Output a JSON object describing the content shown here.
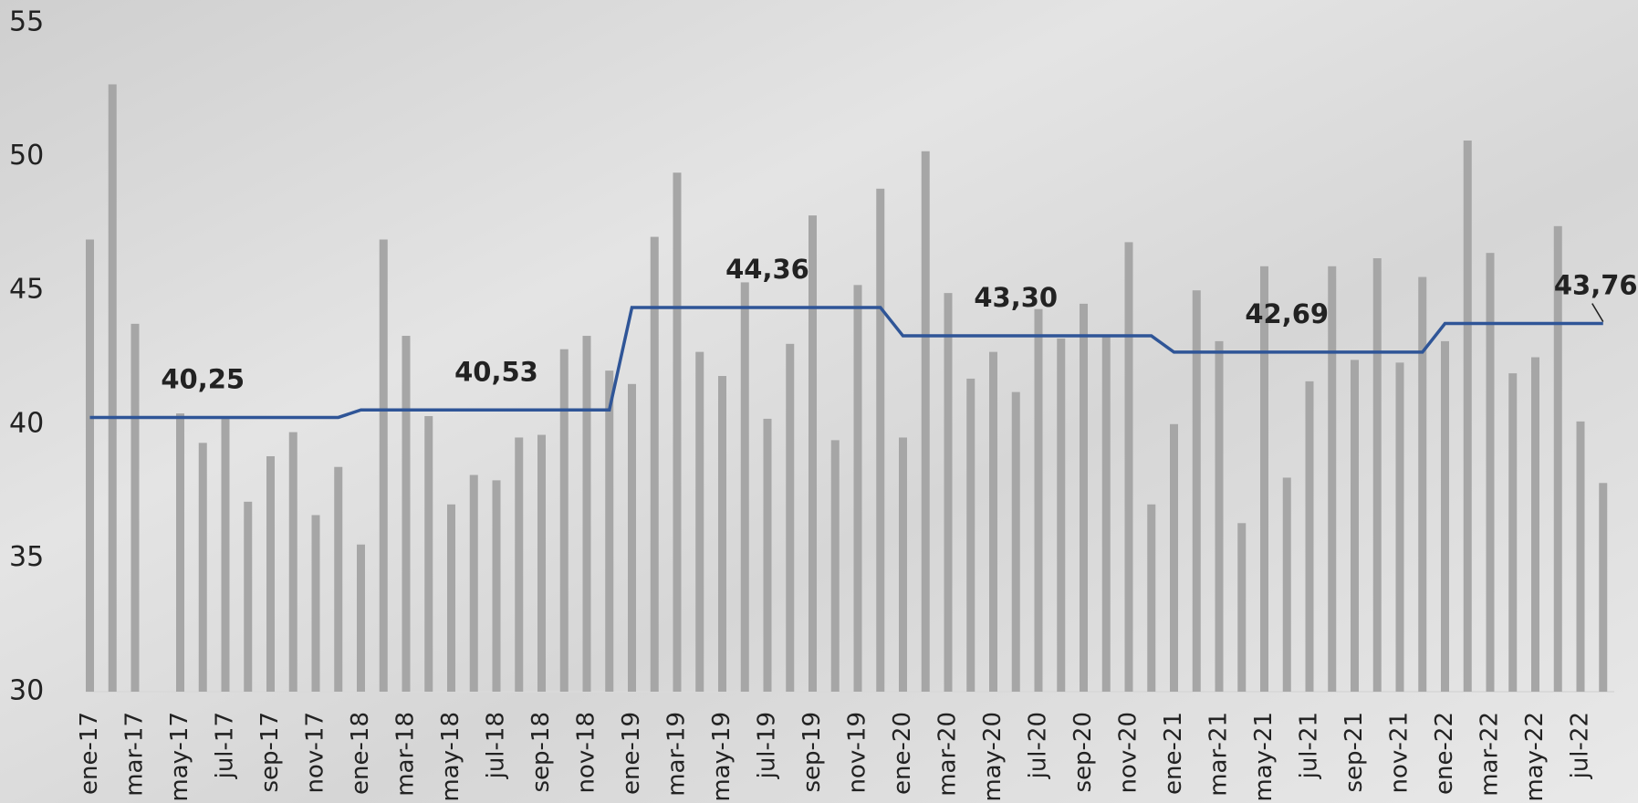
{
  "chart_data": {
    "type": "bar_line",
    "categories": [
      "ene-17",
      null,
      "mar-17",
      null,
      "may-17",
      null,
      "jul-17",
      null,
      "sep-17",
      null,
      "nov-17",
      null,
      "ene-18",
      null,
      "mar-18",
      null,
      "may-18",
      null,
      "jul-18",
      null,
      "sep-18",
      null,
      "nov-18",
      null,
      "ene-19",
      null,
      "mar-19",
      null,
      "may-19",
      null,
      "jul-19",
      null,
      "sep-19",
      null,
      "nov-19",
      null,
      "ene-20",
      null,
      "mar-20",
      null,
      "may-20",
      null,
      "jul-20",
      null,
      "sep-20",
      null,
      "nov-20",
      null,
      "ene-21",
      null,
      "mar-21",
      null,
      "may-21",
      null,
      "jul-21",
      null,
      "sep-21",
      null,
      "nov-21",
      null,
      "ene-22",
      null,
      "mar-22",
      null,
      "may-22",
      null,
      "jul-22",
      null
    ],
    "series": [
      {
        "type": "bar",
        "color": "#a6a6a6",
        "values": [
          46.9,
          52.7,
          43.75,
          null,
          40.4,
          39.3,
          40.2,
          37.1,
          38.8,
          39.7,
          36.6,
          38.4,
          35.5,
          46.9,
          43.3,
          40.3,
          37.0,
          38.1,
          37.9,
          39.5,
          39.6,
          42.8,
          43.3,
          42.0,
          41.5,
          47.0,
          49.4,
          42.7,
          41.8,
          45.3,
          40.2,
          43.0,
          47.8,
          39.4,
          45.2,
          48.8,
          39.5,
          50.2,
          44.9,
          41.7,
          42.7,
          41.2,
          44.3,
          43.2,
          44.5,
          43.3,
          46.8,
          37.0,
          40.0,
          45.0,
          43.1,
          36.3,
          45.9,
          38.0,
          41.6,
          45.9,
          42.4,
          46.2,
          42.3,
          45.5,
          43.1,
          50.6,
          46.4,
          41.9,
          42.5,
          47.4,
          40.1,
          37.8
        ]
      },
      {
        "type": "line",
        "color": "#2f5597",
        "values": [
          40.25,
          40.25,
          40.25,
          40.25,
          40.25,
          40.25,
          40.25,
          40.25,
          40.25,
          40.25,
          40.25,
          40.25,
          40.53,
          40.53,
          40.53,
          40.53,
          40.53,
          40.53,
          40.53,
          40.53,
          40.53,
          40.53,
          40.53,
          40.53,
          44.36,
          44.36,
          44.36,
          44.36,
          44.36,
          44.36,
          44.36,
          44.36,
          44.36,
          44.36,
          44.36,
          44.36,
          43.3,
          43.3,
          43.3,
          43.3,
          43.3,
          43.3,
          43.3,
          43.3,
          43.3,
          43.3,
          43.3,
          43.3,
          42.69,
          42.69,
          42.69,
          42.69,
          42.69,
          42.69,
          42.69,
          42.69,
          42.69,
          42.69,
          42.69,
          42.69,
          43.76,
          43.76,
          43.76,
          43.76,
          43.76,
          43.76,
          43.76,
          43.76
        ],
        "value_labels": [
          null,
          null,
          null,
          null,
          null,
          "40,25",
          null,
          null,
          null,
          null,
          null,
          null,
          null,
          null,
          null,
          null,
          null,
          null,
          "40,53",
          null,
          null,
          null,
          null,
          null,
          null,
          null,
          null,
          null,
          null,
          null,
          "44,36",
          null,
          null,
          null,
          null,
          null,
          null,
          null,
          null,
          null,
          null,
          "43,30",
          null,
          null,
          null,
          null,
          null,
          null,
          null,
          null,
          null,
          null,
          null,
          "42,69",
          null,
          null,
          null,
          null,
          null,
          null,
          null,
          null,
          null,
          null,
          null,
          null,
          null,
          "43,76"
        ]
      }
    ],
    "ylim": [
      30,
      55
    ],
    "yticks": [
      30,
      35,
      40,
      45,
      50,
      55
    ]
  }
}
